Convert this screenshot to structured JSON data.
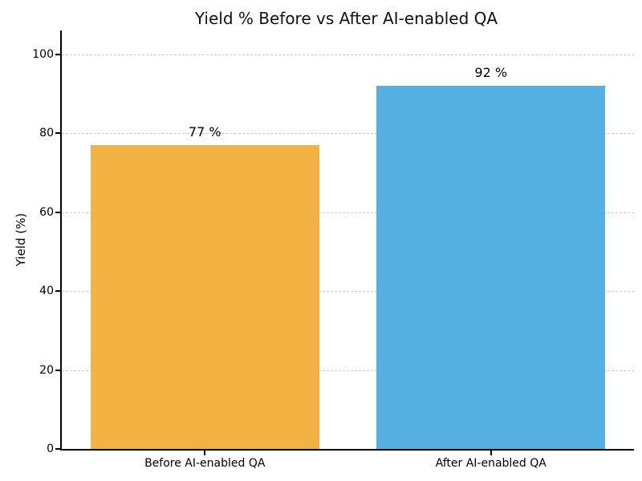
{
  "chart_data": {
    "type": "bar",
    "title": "Yield % Before vs After AI-enabled QA",
    "categories": [
      "Before AI-enabled QA",
      "After AI-enabled QA"
    ],
    "values": [
      77,
      92
    ],
    "bar_labels": [
      "77 %",
      "92 %"
    ],
    "bar_colors": [
      "#F2B342",
      "#56B1E2"
    ],
    "xlabel": "",
    "ylabel": "Yield (%)",
    "yticks": [
      0,
      20,
      40,
      60,
      80,
      100
    ],
    "ylim": [
      0,
      106
    ],
    "bar_width_fraction": 0.8,
    "grid": {
      "axis": "y",
      "style": "dashed",
      "color": "#cccccc"
    },
    "legend": "none",
    "spine_color": "#000000",
    "text_color": "#000000",
    "background_color": "#ffffff"
  }
}
